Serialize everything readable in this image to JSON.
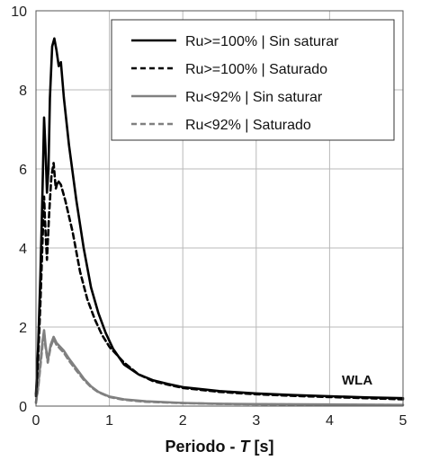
{
  "chart_data": {
    "type": "line",
    "xlabel_prefix": "Periodo - ",
    "xlabel_var": "T",
    "xlabel_unit": " [s]",
    "ylabel": "",
    "xlim": [
      0,
      5
    ],
    "ylim": [
      0,
      10
    ],
    "x_ticks": [
      "0",
      "1",
      "2",
      "3",
      "4",
      "5"
    ],
    "y_ticks": [
      "0",
      "2",
      "4",
      "6",
      "8",
      "10"
    ],
    "grid": true,
    "legend_position": "top-right",
    "annotation": "WLA",
    "series": [
      {
        "name": "Ru>=100% | Sin saturar",
        "color": "#000000",
        "style": "solid",
        "points": [
          [
            0,
            0.3
          ],
          [
            0.03,
            1.5
          ],
          [
            0.06,
            3.3
          ],
          [
            0.09,
            5.5
          ],
          [
            0.11,
            7.3
          ],
          [
            0.13,
            6.5
          ],
          [
            0.15,
            5.4
          ],
          [
            0.17,
            6.0
          ],
          [
            0.19,
            7.8
          ],
          [
            0.22,
            9.1
          ],
          [
            0.25,
            9.3
          ],
          [
            0.28,
            9.0
          ],
          [
            0.31,
            8.6
          ],
          [
            0.34,
            8.7
          ],
          [
            0.38,
            7.8
          ],
          [
            0.45,
            6.6
          ],
          [
            0.55,
            5.2
          ],
          [
            0.65,
            4.0
          ],
          [
            0.75,
            3.0
          ],
          [
            0.85,
            2.35
          ],
          [
            0.95,
            1.85
          ],
          [
            1.05,
            1.45
          ],
          [
            1.2,
            1.05
          ],
          [
            1.4,
            0.8
          ],
          [
            1.6,
            0.65
          ],
          [
            1.8,
            0.56
          ],
          [
            2.0,
            0.48
          ],
          [
            2.5,
            0.38
          ],
          [
            3.0,
            0.32
          ],
          [
            3.5,
            0.28
          ],
          [
            4.0,
            0.25
          ],
          [
            4.5,
            0.22
          ],
          [
            5.0,
            0.2
          ]
        ]
      },
      {
        "name": "Ru>=100% | Saturado",
        "color": "#000000",
        "style": "dashed",
        "points": [
          [
            0,
            0.25
          ],
          [
            0.03,
            1.2
          ],
          [
            0.06,
            2.6
          ],
          [
            0.09,
            4.2
          ],
          [
            0.11,
            5.3
          ],
          [
            0.13,
            4.4
          ],
          [
            0.15,
            3.7
          ],
          [
            0.18,
            4.9
          ],
          [
            0.21,
            5.8
          ],
          [
            0.24,
            6.15
          ],
          [
            0.27,
            5.5
          ],
          [
            0.3,
            5.7
          ],
          [
            0.34,
            5.6
          ],
          [
            0.4,
            5.2
          ],
          [
            0.5,
            4.4
          ],
          [
            0.6,
            3.4
          ],
          [
            0.7,
            2.7
          ],
          [
            0.8,
            2.2
          ],
          [
            0.9,
            1.8
          ],
          [
            1.0,
            1.5
          ],
          [
            1.1,
            1.3
          ],
          [
            1.2,
            1.1
          ],
          [
            1.4,
            0.8
          ],
          [
            1.6,
            0.63
          ],
          [
            1.8,
            0.54
          ],
          [
            2.0,
            0.46
          ],
          [
            2.5,
            0.36
          ],
          [
            3.0,
            0.3
          ],
          [
            3.5,
            0.26
          ],
          [
            4.0,
            0.23
          ],
          [
            4.5,
            0.2
          ],
          [
            5.0,
            0.17
          ]
        ]
      },
      {
        "name": "Ru<92% | Sin saturar",
        "color": "#808080",
        "style": "solid",
        "points": [
          [
            0,
            0.1
          ],
          [
            0.03,
            0.5
          ],
          [
            0.06,
            1.1
          ],
          [
            0.09,
            1.65
          ],
          [
            0.11,
            1.92
          ],
          [
            0.13,
            1.55
          ],
          [
            0.16,
            1.15
          ],
          [
            0.2,
            1.55
          ],
          [
            0.24,
            1.75
          ],
          [
            0.28,
            1.6
          ],
          [
            0.33,
            1.5
          ],
          [
            0.38,
            1.4
          ],
          [
            0.45,
            1.2
          ],
          [
            0.55,
            0.95
          ],
          [
            0.65,
            0.7
          ],
          [
            0.75,
            0.5
          ],
          [
            0.85,
            0.36
          ],
          [
            1.0,
            0.24
          ],
          [
            1.2,
            0.17
          ],
          [
            1.5,
            0.12
          ],
          [
            2.0,
            0.08
          ],
          [
            2.5,
            0.06
          ],
          [
            3.0,
            0.05
          ],
          [
            4.0,
            0.04
          ],
          [
            5.0,
            0.03
          ]
        ]
      },
      {
        "name": "Ru<92% | Saturado",
        "color": "#808080",
        "style": "dashed",
        "points": [
          [
            0,
            0.08
          ],
          [
            0.03,
            0.45
          ],
          [
            0.06,
            1.0
          ],
          [
            0.09,
            1.55
          ],
          [
            0.11,
            1.85
          ],
          [
            0.13,
            1.5
          ],
          [
            0.16,
            1.1
          ],
          [
            0.2,
            1.5
          ],
          [
            0.24,
            1.7
          ],
          [
            0.28,
            1.55
          ],
          [
            0.33,
            1.45
          ],
          [
            0.38,
            1.35
          ],
          [
            0.45,
            1.15
          ],
          [
            0.55,
            0.9
          ],
          [
            0.65,
            0.67
          ],
          [
            0.75,
            0.48
          ],
          [
            0.85,
            0.35
          ],
          [
            1.0,
            0.23
          ],
          [
            1.2,
            0.16
          ],
          [
            1.5,
            0.11
          ],
          [
            2.0,
            0.075
          ],
          [
            2.5,
            0.055
          ],
          [
            3.0,
            0.045
          ],
          [
            4.0,
            0.035
          ],
          [
            5.0,
            0.028
          ]
        ]
      }
    ]
  }
}
